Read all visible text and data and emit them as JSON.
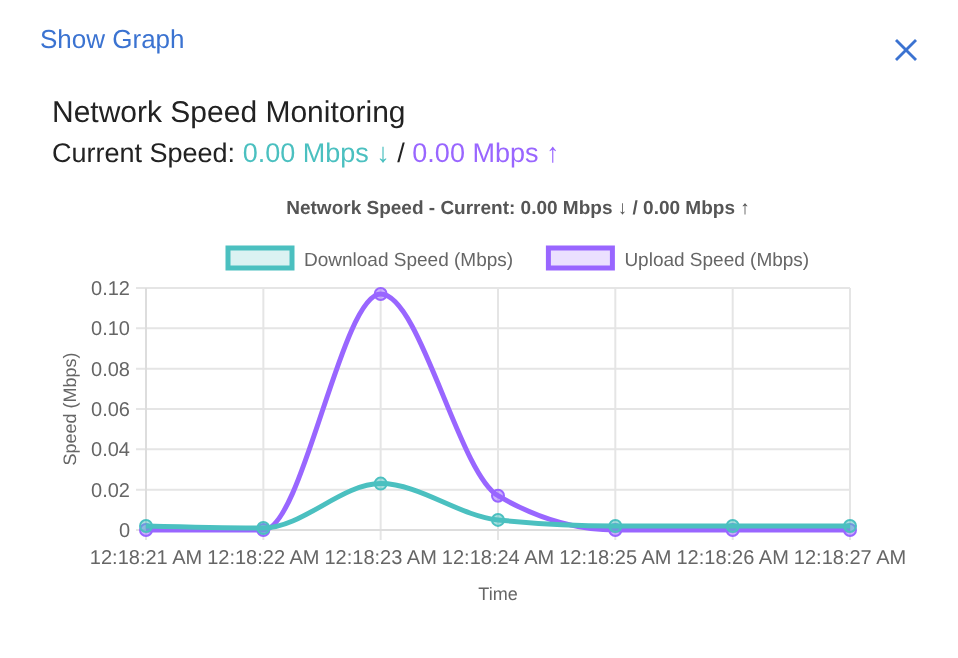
{
  "chart_data": {
    "type": "line",
    "title": "Network Speed - Current: 0.00 Mbps ↓ / 0.00 Mbps ↑",
    "annotations": [
      "Show Graph",
      "Network Speed Monitoring",
      "Current Speed:",
      "0.00 Mbps ↓",
      "/",
      "0.00 Mbps ↑"
    ],
    "xlabel": "Time",
    "ylabel": "Speed (Mbps)",
    "categories": [
      "12:18:21 AM",
      "12:18:22 AM",
      "12:18:23 AM",
      "12:18:24 AM",
      "12:18:25 AM",
      "12:18:26 AM",
      "12:18:27 AM"
    ],
    "series": [
      {
        "name": "Download Speed (Mbps)",
        "color": "#4bc0c0",
        "values": [
          0.002,
          0.001,
          0.023,
          0.005,
          0.002,
          0.002,
          0.002
        ]
      },
      {
        "name": "Upload Speed (Mbps)",
        "color": "#9966ff",
        "values": [
          0,
          0,
          0.117,
          0.017,
          0,
          0,
          0
        ]
      }
    ],
    "ylim": [
      0,
      0.12
    ],
    "yticks": [
      0,
      {
        "value": 0.02,
        "label": "0.02"
      },
      {
        "value": 0.04,
        "label": "0.04"
      },
      {
        "value": 0.06,
        "label": "0.06"
      },
      {
        "value": 0.08,
        "label": "0.08"
      },
      {
        "value": 0.1,
        "label": "0.10"
      },
      {
        "value": 0.12,
        "label": "0.12"
      }
    ],
    "grid": true,
    "legend": "top",
    "marker": "circle",
    "line_style": "solid"
  }
}
